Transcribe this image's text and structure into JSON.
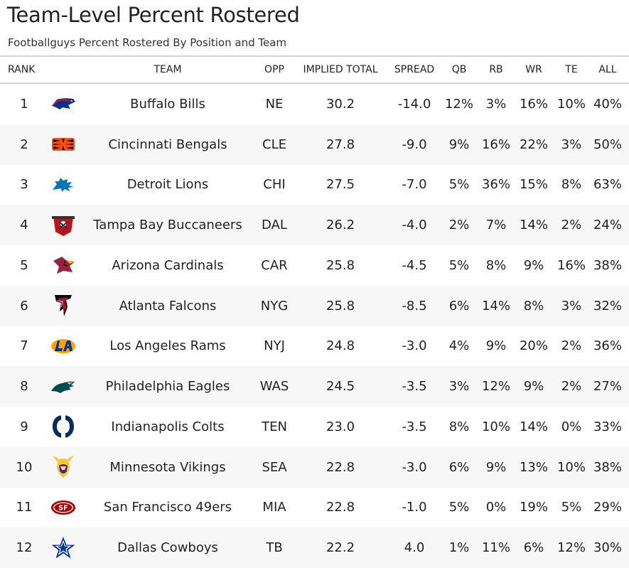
{
  "title": "Team-Level Percent Rostered",
  "subtitle": "Footballguys Percent Rostered By Position and Team",
  "columns": {
    "rank": "RANK",
    "team": "TEAM",
    "opp": "OPP",
    "implied_total": "IMPLIED TOTAL",
    "spread": "SPREAD",
    "qb": "QB",
    "rb": "RB",
    "wr": "WR",
    "te": "TE",
    "all": "ALL"
  },
  "rows": [
    {
      "rank": "1",
      "logo": "buffalo-bills-logo-icon",
      "team": "Buffalo Bills",
      "opp": "NE",
      "implied_total": "30.2",
      "spread": "-14.0",
      "qb": "12%",
      "rb": "3%",
      "wr": "16%",
      "te": "10%",
      "all": "40%"
    },
    {
      "rank": "2",
      "logo": "cincinnati-bengals-logo-icon",
      "team": "Cincinnati Bengals",
      "opp": "CLE",
      "implied_total": "27.8",
      "spread": "-9.0",
      "qb": "9%",
      "rb": "16%",
      "wr": "22%",
      "te": "3%",
      "all": "50%"
    },
    {
      "rank": "3",
      "logo": "detroit-lions-logo-icon",
      "team": "Detroit Lions",
      "opp": "CHI",
      "implied_total": "27.5",
      "spread": "-7.0",
      "qb": "5%",
      "rb": "36%",
      "wr": "15%",
      "te": "8%",
      "all": "63%"
    },
    {
      "rank": "4",
      "logo": "tampa-bay-buccaneers-logo-icon",
      "team": "Tampa Bay Buccaneers",
      "opp": "DAL",
      "implied_total": "26.2",
      "spread": "-4.0",
      "qb": "2%",
      "rb": "7%",
      "wr": "14%",
      "te": "2%",
      "all": "24%"
    },
    {
      "rank": "5",
      "logo": "arizona-cardinals-logo-icon",
      "team": "Arizona Cardinals",
      "opp": "CAR",
      "implied_total": "25.8",
      "spread": "-4.5",
      "qb": "5%",
      "rb": "8%",
      "wr": "9%",
      "te": "16%",
      "all": "38%"
    },
    {
      "rank": "6",
      "logo": "atlanta-falcons-logo-icon",
      "team": "Atlanta Falcons",
      "opp": "NYG",
      "implied_total": "25.8",
      "spread": "-8.5",
      "qb": "6%",
      "rb": "14%",
      "wr": "8%",
      "te": "3%",
      "all": "32%"
    },
    {
      "rank": "7",
      "logo": "los-angeles-rams-logo-icon",
      "team": "Los Angeles Rams",
      "opp": "NYJ",
      "implied_total": "24.8",
      "spread": "-3.0",
      "qb": "4%",
      "rb": "9%",
      "wr": "20%",
      "te": "2%",
      "all": "36%"
    },
    {
      "rank": "8",
      "logo": "philadelphia-eagles-logo-icon",
      "team": "Philadelphia Eagles",
      "opp": "WAS",
      "implied_total": "24.5",
      "spread": "-3.5",
      "qb": "3%",
      "rb": "12%",
      "wr": "9%",
      "te": "2%",
      "all": "27%"
    },
    {
      "rank": "9",
      "logo": "indianapolis-colts-logo-icon",
      "team": "Indianapolis Colts",
      "opp": "TEN",
      "implied_total": "23.0",
      "spread": "-3.5",
      "qb": "8%",
      "rb": "10%",
      "wr": "14%",
      "te": "0%",
      "all": "33%"
    },
    {
      "rank": "10",
      "logo": "minnesota-vikings-logo-icon",
      "team": "Minnesota Vikings",
      "opp": "SEA",
      "implied_total": "22.8",
      "spread": "-3.0",
      "qb": "6%",
      "rb": "9%",
      "wr": "13%",
      "te": "10%",
      "all": "38%"
    },
    {
      "rank": "11",
      "logo": "san-francisco-49ers-logo-icon",
      "team": "San Francisco 49ers",
      "opp": "MIA",
      "implied_total": "22.8",
      "spread": "-1.0",
      "qb": "5%",
      "rb": "0%",
      "wr": "19%",
      "te": "5%",
      "all": "29%"
    },
    {
      "rank": "12",
      "logo": "dallas-cowboys-logo-icon",
      "team": "Dallas Cowboys",
      "opp": "TB",
      "implied_total": "22.2",
      "spread": "4.0",
      "qb": "1%",
      "rb": "11%",
      "wr": "6%",
      "te": "12%",
      "all": "30%"
    }
  ]
}
